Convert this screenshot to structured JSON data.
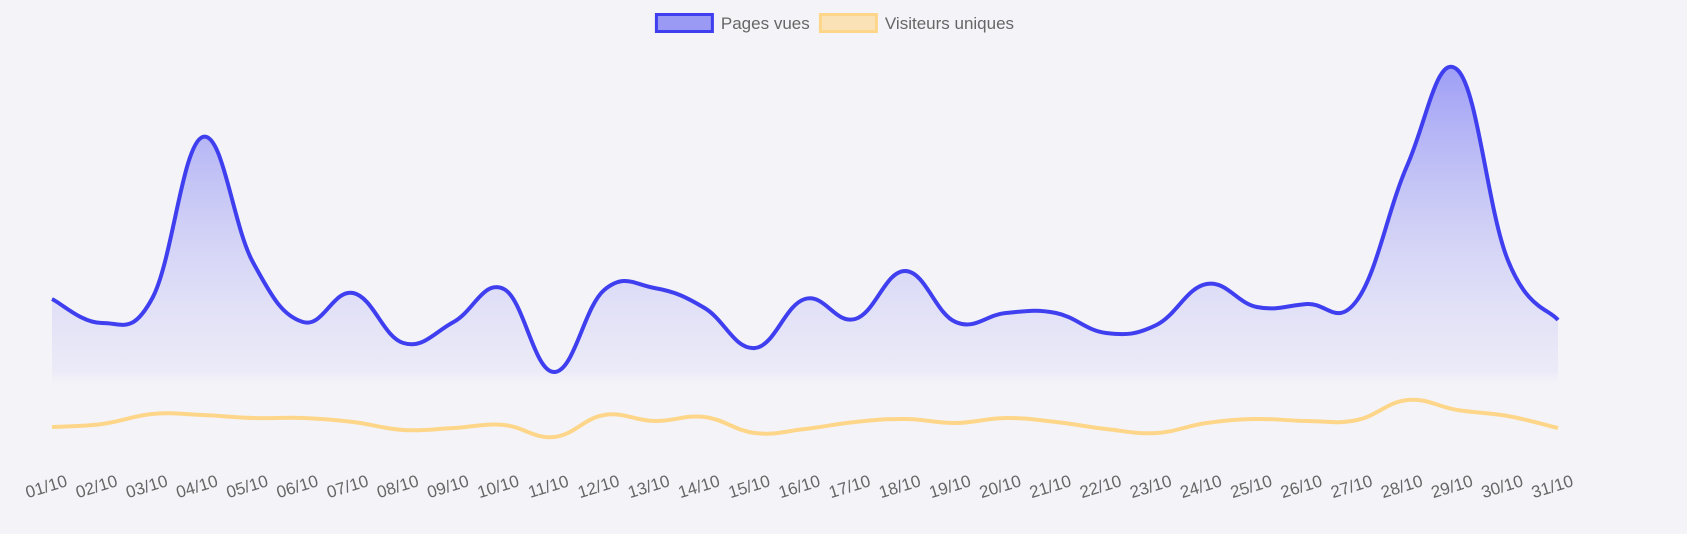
{
  "chart_data": {
    "type": "line",
    "categories": [
      "01/10",
      "02/10",
      "03/10",
      "04/10",
      "05/10",
      "06/10",
      "07/10",
      "08/10",
      "09/10",
      "10/10",
      "11/10",
      "12/10",
      "13/10",
      "14/10",
      "15/10",
      "16/10",
      "17/10",
      "18/10",
      "19/10",
      "20/10",
      "21/10",
      "22/10",
      "23/10",
      "24/10",
      "25/10",
      "26/10",
      "27/10",
      "28/10",
      "29/10",
      "30/10",
      "31/10"
    ],
    "series": [
      {
        "name": "Pages vues",
        "color": "#3f3ff0",
        "fill": true,
        "values": [
          161,
          137,
          162,
          323,
          198,
          138,
          167,
          117,
          138,
          171,
          88,
          170,
          172,
          152,
          112,
          161,
          141,
          189,
          138,
          147,
          147,
          127,
          135,
          176,
          153,
          156,
          160,
          295,
          390,
          200,
          140
        ]
      },
      {
        "name": "Visiteurs uniques",
        "color": "#fdd68a",
        "fill": false,
        "values": [
          33,
          36,
          46,
          45,
          42,
          42,
          38,
          30,
          32,
          35,
          23,
          45,
          39,
          43,
          27,
          31,
          38,
          41,
          37,
          42,
          38,
          31,
          27,
          37,
          41,
          39,
          40,
          60,
          50,
          44,
          32
        ]
      }
    ],
    "ylim": [
      0,
      420
    ],
    "legend": "top"
  }
}
